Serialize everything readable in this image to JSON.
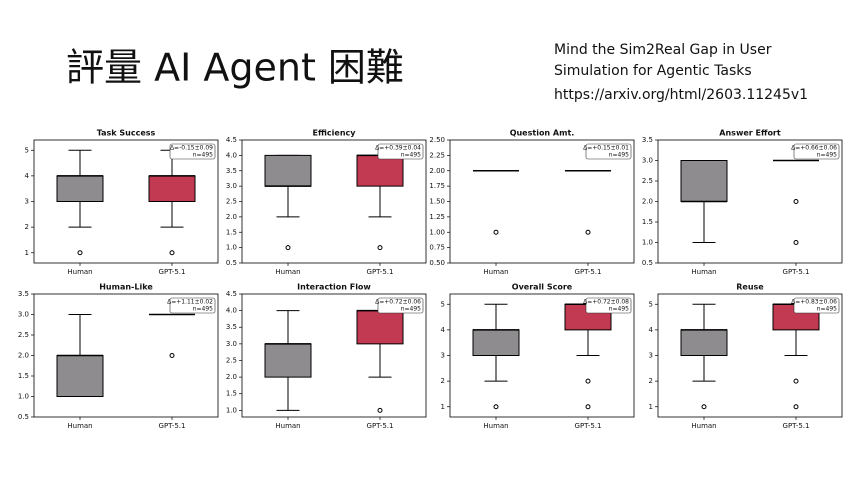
{
  "slide": {
    "title": "評量 AI Agent 困難",
    "reference": [
      "Mind the Sim2Real Gap in User",
      "Simulation for Agentic Tasks",
      "https://arxiv.org/html/2603.11245v1"
    ]
  },
  "chart_data": [
    {
      "type": "box",
      "title": "Task Success",
      "categories": [
        "Human",
        "GPT-5.1"
      ],
      "ylim": [
        0.6,
        5.4
      ],
      "yticks": [
        1,
        2,
        3,
        4,
        5
      ],
      "annotation": [
        "Δ=-0.15±0.09",
        "n=495"
      ],
      "boxes": [
        {
          "color": "#8e8c8e",
          "min": 2,
          "q1": 3,
          "median": 4,
          "q3": 4,
          "max": 5,
          "outliers": [
            1
          ]
        },
        {
          "color": "#c23a52",
          "min": 2,
          "q1": 3,
          "median": 4,
          "q3": 4,
          "max": 5,
          "outliers": [
            1
          ]
        }
      ]
    },
    {
      "type": "box",
      "title": "Efficiency",
      "categories": [
        "Human",
        "GPT-5.1"
      ],
      "ylim": [
        0.5,
        4.5
      ],
      "yticks": [
        0.5,
        {
          "value": 1,
          "label": "1.0"
        },
        1.5,
        {
          "value": 2,
          "label": "2.0"
        },
        2.5,
        {
          "value": 3,
          "label": "3.0"
        },
        3.5,
        {
          "value": 4,
          "label": "4.0"
        },
        4.5
      ],
      "annotation": [
        "Δ=+0.39±0.04",
        "n=495"
      ],
      "boxes": [
        {
          "color": "#8e8c8e",
          "min": 2,
          "q1": 3,
          "median": 3,
          "q3": 4,
          "max": 4,
          "outliers": [
            1
          ]
        },
        {
          "color": "#c23a52",
          "min": 2,
          "q1": 3,
          "median": 4,
          "q3": 4,
          "max": 4,
          "outliers": [
            1
          ]
        }
      ]
    },
    {
      "type": "box",
      "title": "Question Amt.",
      "categories": [
        "Human",
        "GPT-5.1"
      ],
      "ylim": [
        0.5,
        2.5
      ],
      "yticks": [
        {
          "value": 0.5,
          "label": "0.50"
        },
        0.75,
        {
          "value": 1,
          "label": "1.00"
        },
        1.25,
        {
          "value": 1.5,
          "label": "1.50"
        },
        1.75,
        {
          "value": 2,
          "label": "2.00"
        },
        2.25,
        {
          "value": 2.5,
          "label": "2.50"
        }
      ],
      "annotation": [
        "Δ=+0.15±0.01",
        "n=495"
      ],
      "boxes": [
        {
          "color": "#8e8c8e",
          "min": 2,
          "q1": 2,
          "median": 2,
          "q3": 2,
          "max": 2,
          "outliers": [
            1
          ]
        },
        {
          "color": "#c23a52",
          "min": 2,
          "q1": 2,
          "median": 2,
          "q3": 2,
          "max": 2,
          "outliers": [
            1
          ]
        }
      ]
    },
    {
      "type": "box",
      "title": "Answer Effort",
      "categories": [
        "Human",
        "GPT-5.1"
      ],
      "ylim": [
        0.5,
        3.5
      ],
      "yticks": [
        0.5,
        {
          "value": 1,
          "label": "1.0"
        },
        1.5,
        {
          "value": 2,
          "label": "2.0"
        },
        2.5,
        {
          "value": 3,
          "label": "3.0"
        },
        3.5
      ],
      "annotation": [
        "Δ=+0.66±0.06",
        "n=495"
      ],
      "boxes": [
        {
          "color": "#8e8c8e",
          "min": 1,
          "q1": 2,
          "median": 2,
          "q3": 3,
          "max": 3,
          "outliers": []
        },
        {
          "color": "#c23a52",
          "min": 3,
          "q1": 3,
          "median": 3,
          "q3": 3,
          "max": 3,
          "outliers": [
            2,
            1
          ]
        }
      ]
    },
    {
      "type": "box",
      "title": "Human-Like",
      "categories": [
        "Human",
        "GPT-5.1"
      ],
      "ylim": [
        0.5,
        3.5
      ],
      "yticks": [
        0.5,
        {
          "value": 1,
          "label": "1.0"
        },
        1.5,
        {
          "value": 2,
          "label": "2.0"
        },
        2.5,
        {
          "value": 3,
          "label": "3.0"
        },
        3.5
      ],
      "annotation": [
        "Δ=+1.11±0.02",
        "n=495"
      ],
      "boxes": [
        {
          "color": "#8e8c8e",
          "min": 1,
          "q1": 1,
          "median": 2,
          "q3": 2,
          "max": 3,
          "outliers": []
        },
        {
          "color": "#c23a52",
          "min": 3,
          "q1": 3,
          "median": 3,
          "q3": 3,
          "max": 3,
          "outliers": [
            2
          ]
        }
      ]
    },
    {
      "type": "box",
      "title": "Interaction Flow",
      "categories": [
        "Human",
        "GPT-5.1"
      ],
      "ylim": [
        0.8,
        4.5
      ],
      "yticks": [
        {
          "value": 1,
          "label": "1.0"
        },
        1.5,
        {
          "value": 2,
          "label": "2.0"
        },
        2.5,
        {
          "value": 3,
          "label": "3.0"
        },
        3.5,
        {
          "value": 4,
          "label": "4.0"
        },
        4.5
      ],
      "annotation": [
        "Δ=+0.72±0.06",
        "n=495"
      ],
      "boxes": [
        {
          "color": "#8e8c8e",
          "min": 1,
          "q1": 2,
          "median": 3,
          "q3": 3,
          "max": 4,
          "outliers": []
        },
        {
          "color": "#c23a52",
          "min": 2,
          "q1": 3,
          "median": 4,
          "q3": 4,
          "max": 4,
          "outliers": [
            1
          ]
        }
      ]
    },
    {
      "type": "box",
      "title": "Overall Score",
      "categories": [
        "Human",
        "GPT-5.1"
      ],
      "ylim": [
        0.6,
        5.4
      ],
      "yticks": [
        1,
        2,
        3,
        4,
        5
      ],
      "annotation": [
        "Δ=+0.72±0.08",
        "n=495"
      ],
      "boxes": [
        {
          "color": "#8e8c8e",
          "min": 2,
          "q1": 3,
          "median": 4,
          "q3": 4,
          "max": 5,
          "outliers": [
            1
          ]
        },
        {
          "color": "#c23a52",
          "min": 3,
          "q1": 4,
          "median": 5,
          "q3": 5,
          "max": 5,
          "outliers": [
            2,
            1
          ]
        }
      ]
    },
    {
      "type": "box",
      "title": "Reuse",
      "categories": [
        "Human",
        "GPT-5.1"
      ],
      "ylim": [
        0.6,
        5.4
      ],
      "yticks": [
        1,
        2,
        3,
        4,
        5
      ],
      "annotation": [
        "Δ=+0.83±0.06",
        "n=495"
      ],
      "boxes": [
        {
          "color": "#8e8c8e",
          "min": 2,
          "q1": 3,
          "median": 4,
          "q3": 4,
          "max": 5,
          "outliers": [
            1
          ]
        },
        {
          "color": "#c23a52",
          "min": 3,
          "q1": 4,
          "median": 5,
          "q3": 5,
          "max": 5,
          "outliers": [
            2,
            1
          ]
        }
      ]
    }
  ]
}
